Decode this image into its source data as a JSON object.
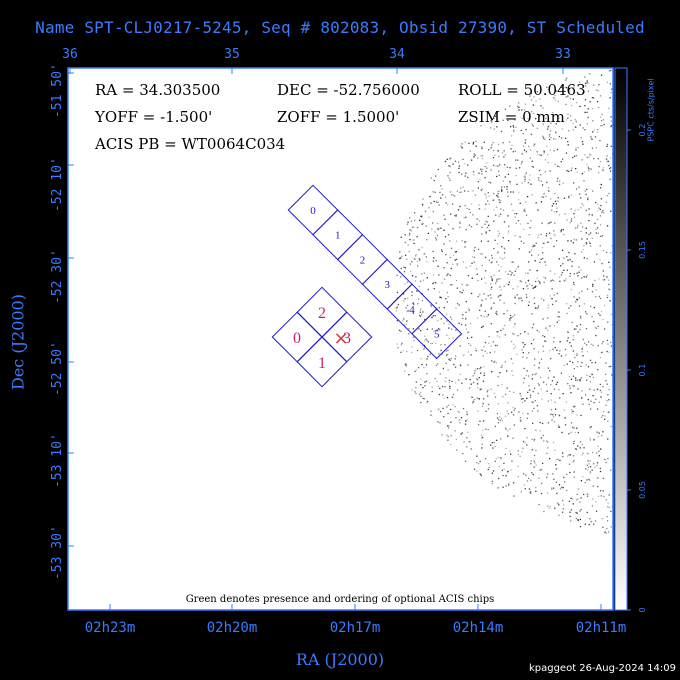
{
  "title": "Name SPT-CLJ0217-5245, Seq # 802083, Obsid 27390, ST Scheduled",
  "chart_data": {
    "type": "image",
    "x_axis_label": "RA (J2000)",
    "y_axis_label": "Dec (J2000)",
    "x_top_ticks": [
      "36",
      "35",
      "34",
      "33"
    ],
    "x_bottom_ticks": [
      "02h23m",
      "02h20m",
      "02h17m",
      "02h14m",
      "02h11m"
    ],
    "y_ticks": [
      "-51 50'",
      "-52 10'",
      "-52 30'",
      "-52 50'",
      "-53 10'",
      "-53 30'"
    ],
    "colorbar_label": "PSPC cts/s/pixel",
    "colorbar_ticks": [
      "0",
      "0.05",
      "0.1",
      "0.15",
      "0.2"
    ],
    "pointing": {
      "ra": "RA = 34.303500",
      "dec": "DEC = -52.756000",
      "roll": "ROLL = 50.0463",
      "yoff": "YOFF =  -1.500'",
      "zoff": "ZOFF =  1.5000'",
      "zsim": "ZSIM = 0 mm",
      "acis_pb": "ACIS PB = WT0064C034"
    },
    "acis_s_chips": [
      "0",
      "1",
      "2",
      "3",
      "4",
      "5"
    ],
    "acis_i_chips": [
      "0",
      "1",
      "2",
      "3"
    ],
    "aimpoint_marker": "×",
    "note": "Green denotes presence and ordering of optional ACIS chips"
  },
  "colors": {
    "axes": "#3a7bff",
    "chip_outline": "#1a1acc",
    "chip_label_s": "#1a1acc",
    "chip_label_i": "#cc1f6e",
    "aimpoint": "#e0302f",
    "note": "#1a8a1a"
  },
  "footer": "kpaggeot 26-Aug-2024 14:09"
}
